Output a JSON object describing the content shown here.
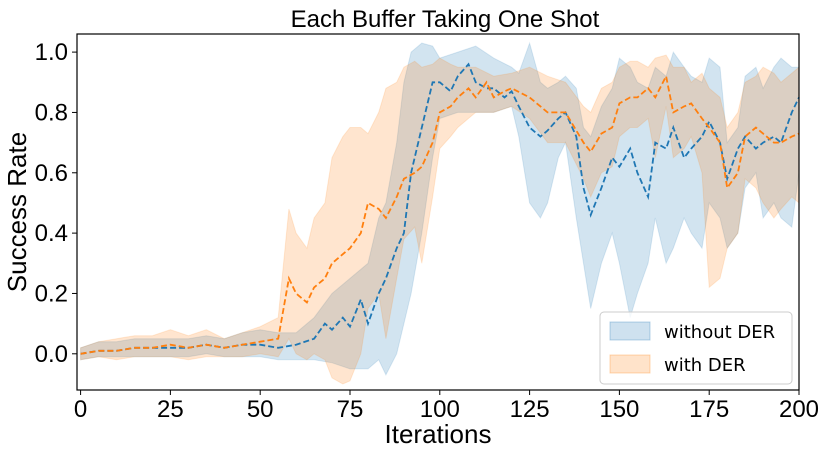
{
  "chart_data": {
    "type": "line",
    "title": "Each Buffer Taking One Shot",
    "xlabel": "Iterations",
    "ylabel": "Success Rate",
    "xlim": [
      -1,
      200
    ],
    "ylim": [
      -0.12,
      1.06
    ],
    "xticks": [
      0,
      25,
      50,
      75,
      100,
      125,
      150,
      175,
      200
    ],
    "yticks": [
      0.0,
      0.2,
      0.4,
      0.6,
      0.8,
      1.0
    ],
    "xtick_labels": [
      "0",
      "25",
      "50",
      "75",
      "100",
      "125",
      "150",
      "175",
      "200"
    ],
    "ytick_labels": [
      "0.0",
      "0.2",
      "0.4",
      "0.6",
      "0.8",
      "1.0"
    ],
    "grid": false,
    "legend_position": "lower-right",
    "series": [
      {
        "name": "without DER",
        "color": "#1f77b4",
        "linestyle": "dashed",
        "x": [
          0,
          5,
          10,
          15,
          20,
          25,
          30,
          35,
          40,
          45,
          50,
          55,
          60,
          65,
          68,
          70,
          73,
          75,
          78,
          80,
          83,
          85,
          88,
          90,
          92,
          95,
          98,
          100,
          103,
          105,
          108,
          110,
          113,
          115,
          118,
          120,
          122,
          125,
          128,
          130,
          133,
          135,
          138,
          140,
          142,
          145,
          148,
          150,
          153,
          155,
          158,
          160,
          163,
          165,
          168,
          170,
          173,
          175,
          178,
          180,
          183,
          185,
          188,
          190,
          193,
          195,
          198,
          200
        ],
        "y": [
          0.0,
          0.01,
          0.01,
          0.02,
          0.02,
          0.02,
          0.02,
          0.03,
          0.02,
          0.03,
          0.03,
          0.02,
          0.03,
          0.05,
          0.1,
          0.08,
          0.12,
          0.09,
          0.18,
          0.1,
          0.2,
          0.25,
          0.35,
          0.4,
          0.6,
          0.75,
          0.9,
          0.9,
          0.87,
          0.92,
          0.96,
          0.9,
          0.88,
          0.88,
          0.85,
          0.87,
          0.82,
          0.75,
          0.72,
          0.74,
          0.78,
          0.8,
          0.72,
          0.55,
          0.46,
          0.55,
          0.65,
          0.62,
          0.68,
          0.6,
          0.52,
          0.7,
          0.68,
          0.75,
          0.65,
          0.68,
          0.72,
          0.77,
          0.7,
          0.58,
          0.68,
          0.72,
          0.68,
          0.7,
          0.72,
          0.7,
          0.8,
          0.85
        ]
      },
      {
        "name": "with DER",
        "color": "#ff7f0e",
        "linestyle": "dashed",
        "x": [
          0,
          5,
          10,
          15,
          20,
          25,
          30,
          35,
          40,
          45,
          50,
          55,
          58,
          60,
          63,
          65,
          68,
          70,
          73,
          75,
          78,
          80,
          83,
          85,
          88,
          90,
          93,
          95,
          98,
          100,
          103,
          105,
          108,
          110,
          113,
          115,
          118,
          120,
          125,
          130,
          135,
          140,
          142,
          145,
          148,
          150,
          153,
          155,
          158,
          160,
          163,
          165,
          168,
          170,
          173,
          175,
          178,
          180,
          183,
          185,
          188,
          190,
          193,
          195,
          198,
          200
        ],
        "y": [
          0.0,
          0.01,
          0.01,
          0.02,
          0.02,
          0.03,
          0.02,
          0.03,
          0.02,
          0.03,
          0.04,
          0.05,
          0.25,
          0.2,
          0.17,
          0.22,
          0.25,
          0.3,
          0.33,
          0.35,
          0.4,
          0.5,
          0.48,
          0.45,
          0.52,
          0.58,
          0.6,
          0.62,
          0.7,
          0.8,
          0.82,
          0.85,
          0.88,
          0.85,
          0.9,
          0.85,
          0.87,
          0.88,
          0.85,
          0.8,
          0.8,
          0.7,
          0.67,
          0.73,
          0.75,
          0.83,
          0.85,
          0.85,
          0.88,
          0.85,
          0.92,
          0.8,
          0.82,
          0.83,
          0.78,
          0.75,
          0.7,
          0.55,
          0.6,
          0.72,
          0.75,
          0.73,
          0.7,
          0.7,
          0.72,
          0.73
        ]
      }
    ],
    "bands": [
      {
        "series": "without DER",
        "color": "#1f77b4",
        "opacity": 0.2,
        "x": [
          0,
          5,
          10,
          15,
          20,
          25,
          30,
          35,
          40,
          45,
          50,
          55,
          60,
          65,
          70,
          75,
          80,
          83,
          85,
          88,
          90,
          92,
          95,
          98,
          100,
          105,
          110,
          115,
          120,
          122,
          125,
          128,
          130,
          133,
          135,
          138,
          140,
          142,
          145,
          148,
          150,
          153,
          155,
          158,
          160,
          163,
          165,
          168,
          170,
          173,
          175,
          178,
          180,
          183,
          185,
          188,
          190,
          193,
          195,
          198,
          200
        ],
        "upper": [
          0.02,
          0.04,
          0.04,
          0.05,
          0.05,
          0.05,
          0.05,
          0.06,
          0.05,
          0.07,
          0.08,
          0.07,
          0.07,
          0.12,
          0.2,
          0.25,
          0.3,
          0.45,
          0.5,
          0.7,
          0.9,
          1.0,
          1.03,
          1.02,
          0.98,
          1.0,
          1.02,
          0.98,
          0.95,
          0.93,
          1.03,
          0.9,
          0.88,
          0.9,
          0.92,
          0.88,
          0.75,
          0.72,
          0.82,
          0.88,
          0.98,
          0.95,
          0.9,
          0.88,
          0.95,
          0.92,
          1.0,
          0.95,
          0.92,
          0.9,
          0.98,
          0.95,
          0.7,
          0.75,
          0.92,
          0.95,
          0.88,
          0.95,
          0.98,
          0.95,
          0.95
        ],
        "lower": [
          -0.02,
          -0.01,
          -0.01,
          -0.01,
          -0.01,
          -0.01,
          -0.01,
          0.0,
          -0.01,
          -0.01,
          -0.01,
          -0.02,
          -0.02,
          -0.02,
          -0.03,
          -0.05,
          -0.05,
          -0.02,
          -0.07,
          0.0,
          0.1,
          0.2,
          0.4,
          0.65,
          0.78,
          0.8,
          0.8,
          0.8,
          0.82,
          0.72,
          0.5,
          0.45,
          0.5,
          0.65,
          0.7,
          0.45,
          0.3,
          0.15,
          0.3,
          0.4,
          0.3,
          0.12,
          0.2,
          0.3,
          0.45,
          0.3,
          0.35,
          0.45,
          0.4,
          0.35,
          0.5,
          0.45,
          0.35,
          0.4,
          0.55,
          0.6,
          0.45,
          0.5,
          0.45,
          0.42,
          0.6
        ]
      },
      {
        "series": "with DER",
        "color": "#ff7f0e",
        "opacity": 0.2,
        "x": [
          0,
          5,
          10,
          15,
          20,
          25,
          30,
          35,
          40,
          45,
          50,
          55,
          58,
          60,
          63,
          65,
          68,
          70,
          73,
          75,
          78,
          80,
          83,
          85,
          88,
          90,
          93,
          95,
          98,
          100,
          103,
          105,
          110,
          115,
          120,
          125,
          130,
          135,
          140,
          142,
          145,
          148,
          150,
          153,
          155,
          158,
          160,
          163,
          165,
          168,
          170,
          173,
          175,
          178,
          180,
          183,
          185,
          188,
          190,
          193,
          195,
          198,
          200
        ],
        "upper": [
          0.02,
          0.04,
          0.05,
          0.06,
          0.06,
          0.08,
          0.06,
          0.08,
          0.05,
          0.07,
          0.09,
          0.12,
          0.48,
          0.4,
          0.35,
          0.45,
          0.5,
          0.65,
          0.72,
          0.75,
          0.75,
          0.73,
          0.8,
          0.88,
          0.9,
          0.95,
          0.97,
          0.95,
          0.96,
          0.98,
          0.96,
          0.95,
          0.95,
          0.92,
          0.93,
          0.95,
          0.92,
          0.9,
          0.82,
          0.8,
          0.88,
          0.9,
          0.95,
          0.97,
          0.97,
          0.95,
          0.98,
          0.99,
          0.95,
          0.95,
          0.9,
          0.93,
          0.88,
          0.85,
          0.75,
          0.8,
          0.9,
          0.92,
          0.95,
          0.93,
          0.9,
          0.93,
          0.95
        ],
        "lower": [
          -0.02,
          -0.01,
          -0.02,
          -0.01,
          -0.01,
          -0.01,
          -0.02,
          -0.01,
          -0.01,
          -0.01,
          0.0,
          -0.01,
          0.05,
          0.0,
          -0.02,
          0.0,
          -0.02,
          -0.08,
          -0.1,
          -0.09,
          0.0,
          0.15,
          0.2,
          0.05,
          0.25,
          0.38,
          0.42,
          0.3,
          0.52,
          0.68,
          0.72,
          0.75,
          0.8,
          0.8,
          0.82,
          0.78,
          0.7,
          0.7,
          0.58,
          0.52,
          0.6,
          0.62,
          0.72,
          0.75,
          0.75,
          0.78,
          0.65,
          0.82,
          0.65,
          0.68,
          0.72,
          0.6,
          0.22,
          0.25,
          0.35,
          0.4,
          0.58,
          0.55,
          0.5,
          0.45,
          0.48,
          0.52,
          0.5
        ]
      }
    ]
  }
}
